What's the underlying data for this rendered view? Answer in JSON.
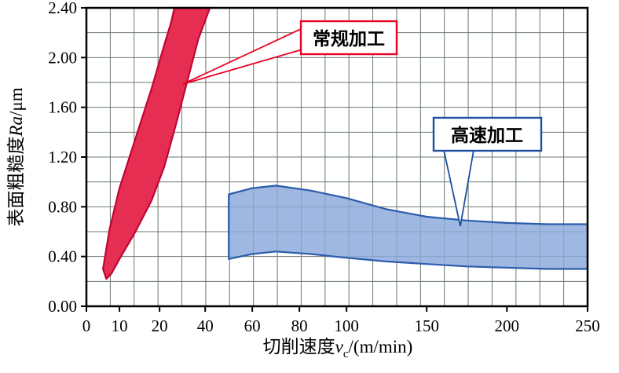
{
  "chart_data": {
    "type": "area",
    "title": "",
    "xlabel": {
      "prefix": "切削速度",
      "symbol": "v",
      "symbol_sub": "c",
      "suffix": "/(m/min)"
    },
    "ylabel": {
      "prefix": "表面粗糙度",
      "symbol": "Ra",
      "suffix": "/μm"
    },
    "xlim": [
      0,
      250
    ],
    "ylim": [
      0,
      2.4
    ],
    "x_ticks": [
      {
        "label": "0",
        "value": 0,
        "pos": 0.0
      },
      {
        "label": "10",
        "value": 10,
        "pos": 0.066
      },
      {
        "label": "20",
        "value": 20,
        "pos": 0.146
      },
      {
        "label": "40",
        "value": 40,
        "pos": 0.237
      },
      {
        "label": "60",
        "value": 60,
        "pos": 0.331
      },
      {
        "label": "80",
        "value": 80,
        "pos": 0.425
      },
      {
        "label": "100",
        "value": 100,
        "pos": 0.519
      },
      {
        "label": "150",
        "value": 150,
        "pos": 0.679
      },
      {
        "label": "200",
        "value": 200,
        "pos": 0.839
      },
      {
        "label": "250",
        "value": 250,
        "pos": 1.0
      }
    ],
    "y_ticks": [
      {
        "label": "0.00",
        "value": 0.0
      },
      {
        "label": "0.40",
        "value": 0.4
      },
      {
        "label": "0.80",
        "value": 0.8
      },
      {
        "label": "1.20",
        "value": 1.2
      },
      {
        "label": "1.60",
        "value": 1.6
      },
      {
        "label": "2.00",
        "value": 2.0
      },
      {
        "label": "2.40",
        "value": 2.4
      }
    ],
    "grid": {
      "cols": 21,
      "rows": 12,
      "color": "#68786a",
      "on": true
    },
    "legend_position": "callouts",
    "series": [
      {
        "name": "常规加工",
        "kind": "band",
        "fill": "#e62e52",
        "stroke": "#c00536",
        "label_color": "#e60024",
        "fill_opacity": 1,
        "upper": [
          [
            5,
            0.3
          ],
          [
            7,
            0.62
          ],
          [
            10,
            0.95
          ],
          [
            14,
            1.35
          ],
          [
            18,
            1.75
          ],
          [
            22,
            2.1
          ],
          [
            25,
            2.28
          ],
          [
            26.5,
            2.4
          ]
        ],
        "lower": [
          [
            6,
            0.22
          ],
          [
            7.5,
            0.26
          ],
          [
            10,
            0.38
          ],
          [
            14,
            0.6
          ],
          [
            18,
            0.85
          ],
          [
            22,
            1.12
          ],
          [
            27,
            1.45
          ],
          [
            32,
            1.8
          ],
          [
            37,
            2.15
          ],
          [
            42,
            2.4
          ]
        ]
      },
      {
        "name": "高速加工",
        "kind": "band",
        "fill": "#8aa8da",
        "stroke": "#2b5cad",
        "label_color": "#1d4fa0",
        "fill_opacity": 0.82,
        "upper": [
          [
            50,
            0.9
          ],
          [
            60,
            0.95
          ],
          [
            70,
            0.97
          ],
          [
            85,
            0.93
          ],
          [
            100,
            0.87
          ],
          [
            125,
            0.78
          ],
          [
            150,
            0.72
          ],
          [
            175,
            0.69
          ],
          [
            200,
            0.67
          ],
          [
            225,
            0.66
          ],
          [
            250,
            0.66
          ]
        ],
        "lower": [
          [
            50,
            0.38
          ],
          [
            60,
            0.42
          ],
          [
            70,
            0.44
          ],
          [
            85,
            0.42
          ],
          [
            100,
            0.39
          ],
          [
            125,
            0.36
          ],
          [
            150,
            0.34
          ],
          [
            175,
            0.32
          ],
          [
            200,
            0.31
          ],
          [
            225,
            0.3
          ],
          [
            250,
            0.3
          ]
        ]
      }
    ]
  }
}
